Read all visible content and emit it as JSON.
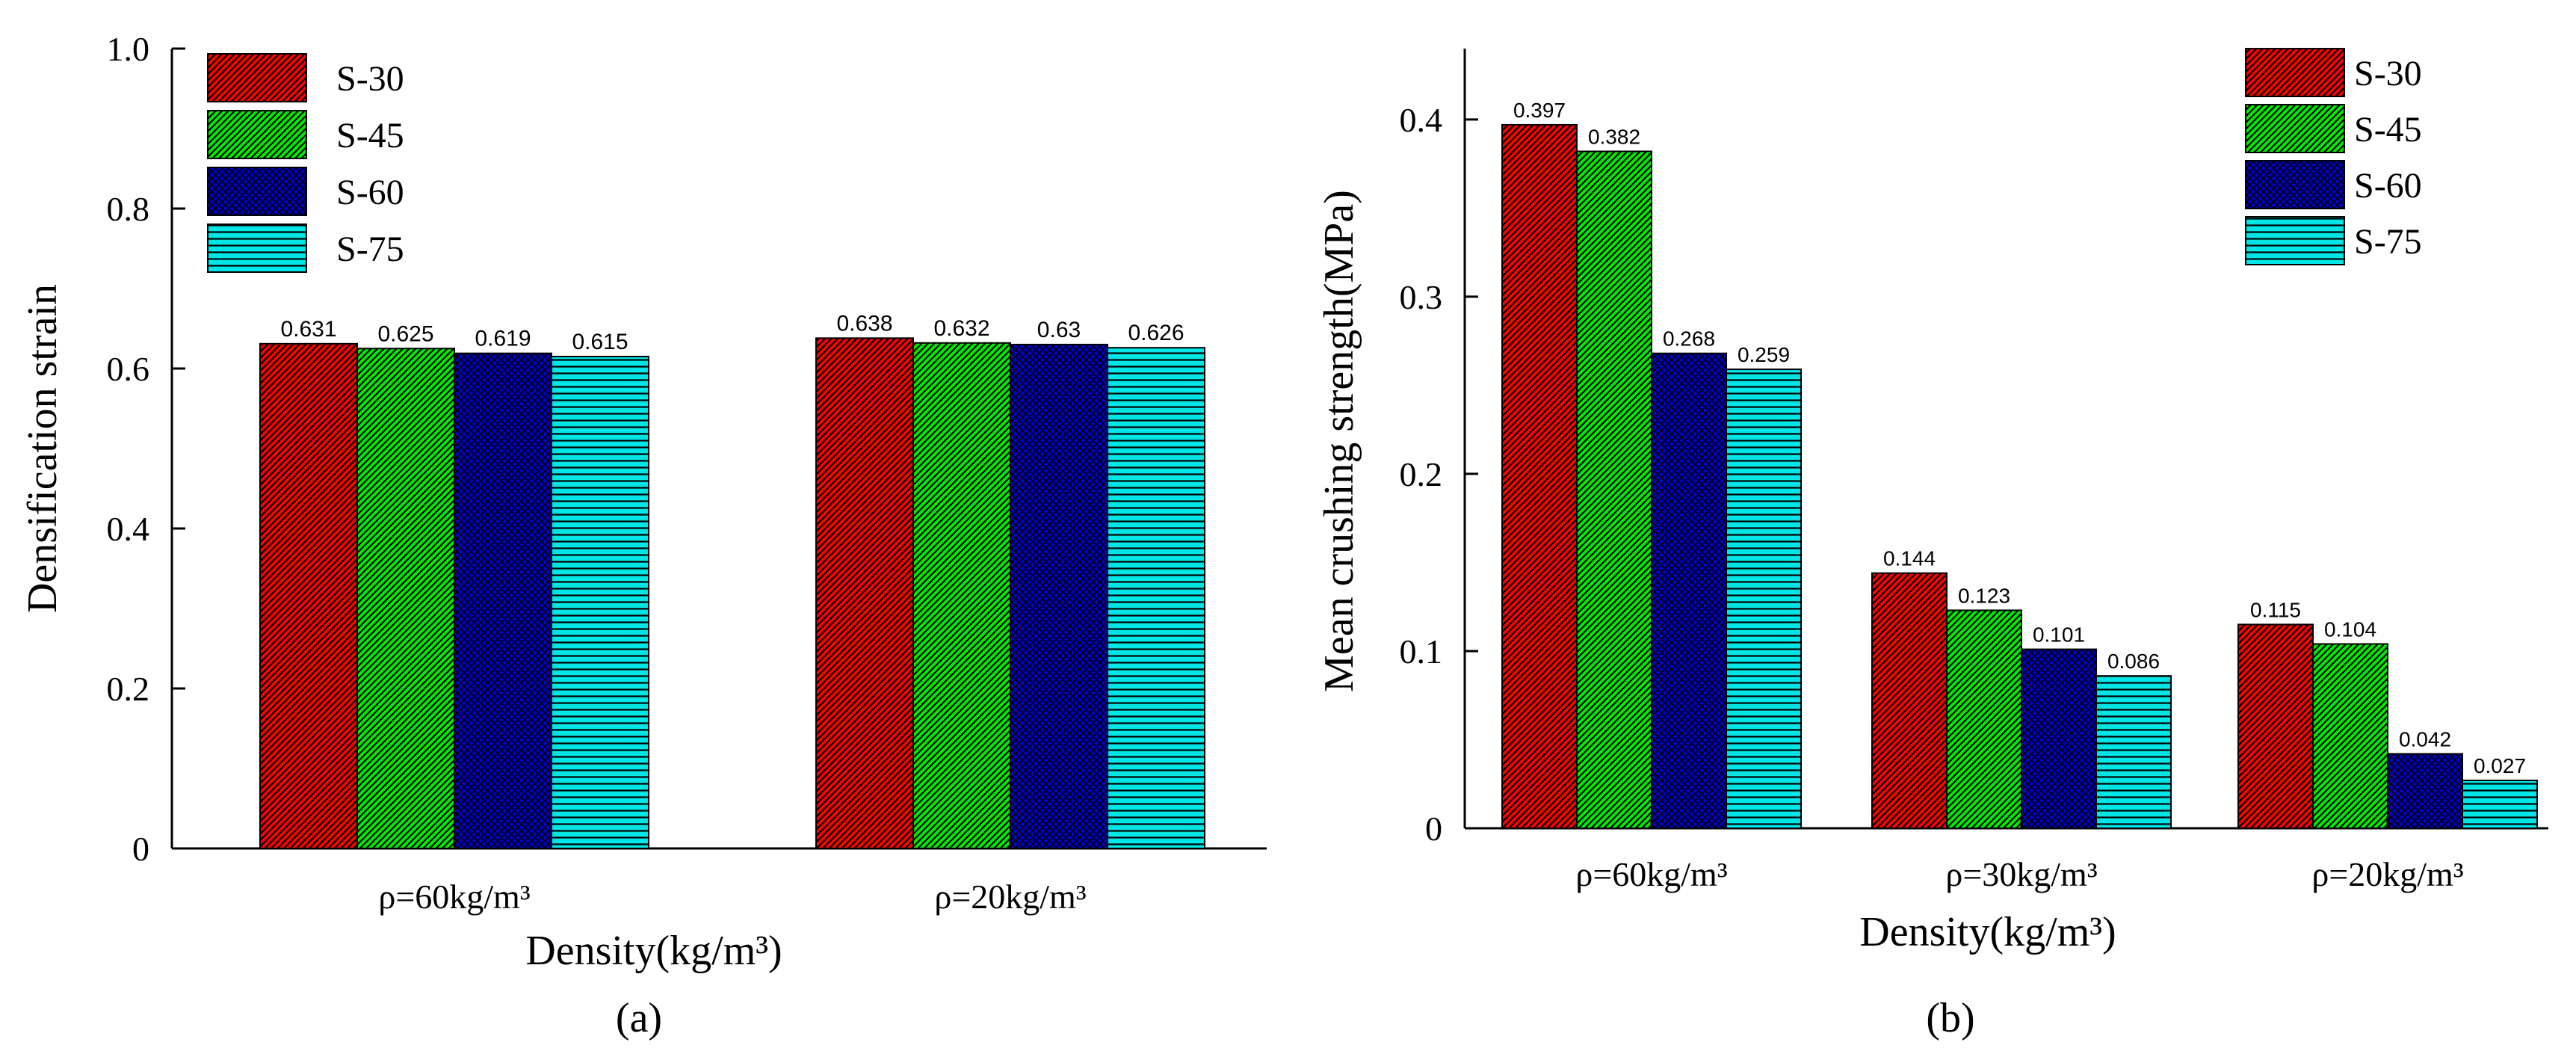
{
  "chart_data": [
    {
      "type": "bar",
      "panel_label": "(a)",
      "xlabel": "Density(kg/m³)",
      "ylabel": "Densification strain",
      "categories": [
        "ρ=60kg/m³",
        "ρ=20kg/m³"
      ],
      "ylim": [
        0,
        1.0
      ],
      "yticks": [
        "0",
        "0.2",
        "0.4",
        "0.6",
        "0.8",
        "1.0"
      ],
      "legend_position": "top-left",
      "grid": false,
      "series": [
        {
          "name": "S-30",
          "values": [
            0.631,
            0.638
          ],
          "labels": [
            "0.631",
            "0.638"
          ],
          "color": "#ff0000",
          "pattern": "diag"
        },
        {
          "name": "S-45",
          "values": [
            0.625,
            0.632
          ],
          "labels": [
            "0.625",
            "0.632"
          ],
          "color": "#00ee00",
          "pattern": "diag"
        },
        {
          "name": "S-60",
          "values": [
            0.619,
            0.63
          ],
          "labels": [
            "0.619",
            "0.63"
          ],
          "color": "#0000cc",
          "pattern": "cross"
        },
        {
          "name": "S-75",
          "values": [
            0.615,
            0.626
          ],
          "labels": [
            "0.615",
            "0.626"
          ],
          "color": "#00e5e5",
          "pattern": "horiz"
        }
      ]
    },
    {
      "type": "bar",
      "panel_label": "(b)",
      "xlabel": "Density(kg/m³)",
      "ylabel": "Mean crushing strength(MPa)",
      "categories": [
        "ρ=60kg/m³",
        "ρ=30kg/m³",
        "ρ=20kg/m³"
      ],
      "ylim": [
        0,
        0.44
      ],
      "yticks": [
        "0",
        "0.1",
        "0.2",
        "0.3",
        "0.4"
      ],
      "legend_position": "top-right",
      "grid": false,
      "series": [
        {
          "name": "S-30",
          "values": [
            0.397,
            0.144,
            0.115
          ],
          "labels": [
            "0.397",
            "0.144",
            "0.115"
          ],
          "color": "#ff0000",
          "pattern": "diag"
        },
        {
          "name": "S-45",
          "values": [
            0.382,
            0.123,
            0.104
          ],
          "labels": [
            "0.382",
            "0.123",
            "0.104"
          ],
          "color": "#00ee00",
          "pattern": "diag"
        },
        {
          "name": "S-60",
          "values": [
            0.268,
            0.101,
            0.042
          ],
          "labels": [
            "0.268",
            "0.101",
            "0.042"
          ],
          "color": "#0000cc",
          "pattern": "cross"
        },
        {
          "name": "S-75",
          "values": [
            0.259,
            0.086,
            0.027
          ],
          "labels": [
            "0.259",
            "0.086",
            "0.027"
          ],
          "color": "#00e5e5",
          "pattern": "horiz"
        }
      ]
    }
  ]
}
